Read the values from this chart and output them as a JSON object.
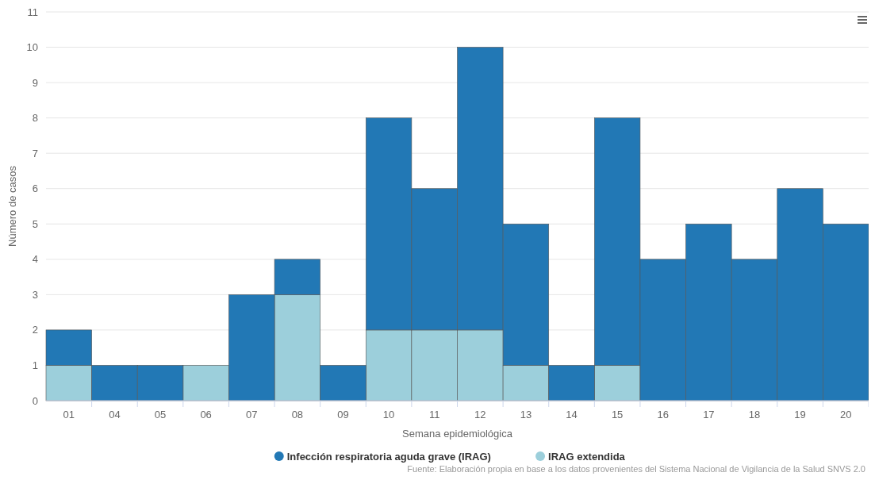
{
  "chart_data": {
    "type": "bar",
    "stacked": true,
    "xlabel": "Semana epidemiológica",
    "ylabel": "Número de casos",
    "categories": [
      "01",
      "04",
      "05",
      "06",
      "07",
      "08",
      "09",
      "10",
      "11",
      "12",
      "13",
      "14",
      "15",
      "16",
      "17",
      "18",
      "19",
      "20"
    ],
    "series": [
      {
        "name": "IRAG extendida",
        "color": "#9ccfdb",
        "values": [
          1,
          0,
          0,
          1,
          0,
          3,
          0,
          2,
          2,
          2,
          1,
          0,
          1,
          0,
          0,
          0,
          0,
          0
        ]
      },
      {
        "name": "Infección respiratoria aguda grave (IRAG)",
        "color": "#2278b5",
        "values": [
          1,
          1,
          1,
          0,
          3,
          1,
          1,
          6,
          4,
          8,
          4,
          1,
          7,
          4,
          5,
          4,
          6,
          5
        ]
      }
    ],
    "ylim": [
      0,
      11
    ],
    "yticks": [
      0,
      1,
      2,
      3,
      4,
      5,
      6,
      7,
      8,
      9,
      10,
      11
    ],
    "grid": "y",
    "legend": "bottom",
    "annotations": [
      "Fuente: Elaboración propia en base a los datos provenientes del Sistema Nacional de Vigilancia de la Salud SNVS 2.0"
    ]
  }
}
